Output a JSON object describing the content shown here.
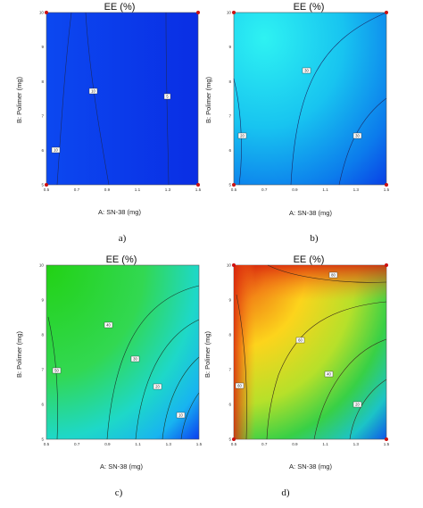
{
  "chart_data": [
    {
      "panel": "a)",
      "type": "heatmap",
      "title": "EE (%)",
      "xlabel": "A: SN-38 (mg)",
      "ylabel": "B: Polimer (mg)",
      "xlim": [
        0.5,
        1.5
      ],
      "ylim": [
        5,
        10
      ],
      "x_ticks": [
        "0.5",
        "0.7",
        "0.9",
        "1.1",
        "1.3",
        "1.5"
      ],
      "y_ticks": [
        "5",
        "6",
        "7",
        "8",
        "9",
        "10"
      ],
      "contour_labels": [
        "10",
        "10",
        "5"
      ],
      "design_points": [
        [
          0.5,
          5
        ],
        [
          1.5,
          5
        ],
        [
          0.5,
          10
        ],
        [
          1.5,
          10
        ]
      ]
    },
    {
      "panel": "b)",
      "type": "heatmap",
      "title": "EE (%)",
      "xlabel": "A: SN-38 (mg)",
      "ylabel": "B: Polimer (mg)",
      "xlim": [
        0.5,
        1.5
      ],
      "ylim": [
        5,
        10
      ],
      "x_ticks": [
        "0.5",
        "0.7",
        "0.9",
        "1.1",
        "1.3",
        "1.5"
      ],
      "y_ticks": [
        "5",
        "6",
        "7",
        "8",
        "9",
        "10"
      ],
      "contour_labels": [
        "20",
        "30",
        "30"
      ],
      "design_points": [
        [
          0.5,
          5
        ],
        [
          1.5,
          5
        ],
        [
          0.5,
          10
        ],
        [
          1.5,
          10
        ]
      ]
    },
    {
      "panel": "c)",
      "type": "heatmap",
      "title": "EE (%)",
      "xlabel": "A: SN-38 (mg)",
      "ylabel": "B: Polimer (mg)",
      "xlim": [
        0.5,
        1.5
      ],
      "ylim": [
        5,
        10
      ],
      "x_ticks": [
        "0.5",
        "0.7",
        "0.9",
        "1.1",
        "1.3",
        "1.5"
      ],
      "y_ticks": [
        "5",
        "6",
        "7",
        "8",
        "9",
        "10"
      ],
      "contour_labels": [
        "50",
        "40",
        "30",
        "20",
        "10"
      ],
      "design_points": []
    },
    {
      "panel": "d)",
      "type": "heatmap",
      "title": "EE (%)",
      "xlabel": "A: SN-38 (mg)",
      "ylabel": "B: Polimer (mg)",
      "xlim": [
        0.5,
        1.5
      ],
      "ylim": [
        5,
        10
      ],
      "x_ticks": [
        "0.5",
        "0.7",
        "0.9",
        "1.1",
        "1.3",
        "1.5"
      ],
      "y_ticks": [
        "5",
        "6",
        "7",
        "8",
        "9",
        "10"
      ],
      "contour_labels": [
        "80",
        "60",
        "60",
        "40",
        "20"
      ],
      "design_points": [
        [
          0.5,
          5
        ],
        [
          1.5,
          5
        ],
        [
          0.5,
          10
        ],
        [
          1.5,
          10
        ]
      ]
    }
  ],
  "colors": {
    "point": "#cc1111",
    "a": [
      "#0a3ef0",
      "#0d2fe4"
    ],
    "b": [
      "#25e6ee",
      "#0d50ea"
    ],
    "c": [
      "#2bd61a",
      "#0a3af0"
    ],
    "d": [
      "#c91d0b",
      "#ffd21a",
      "#35d23a",
      "#0a3cf0"
    ]
  }
}
